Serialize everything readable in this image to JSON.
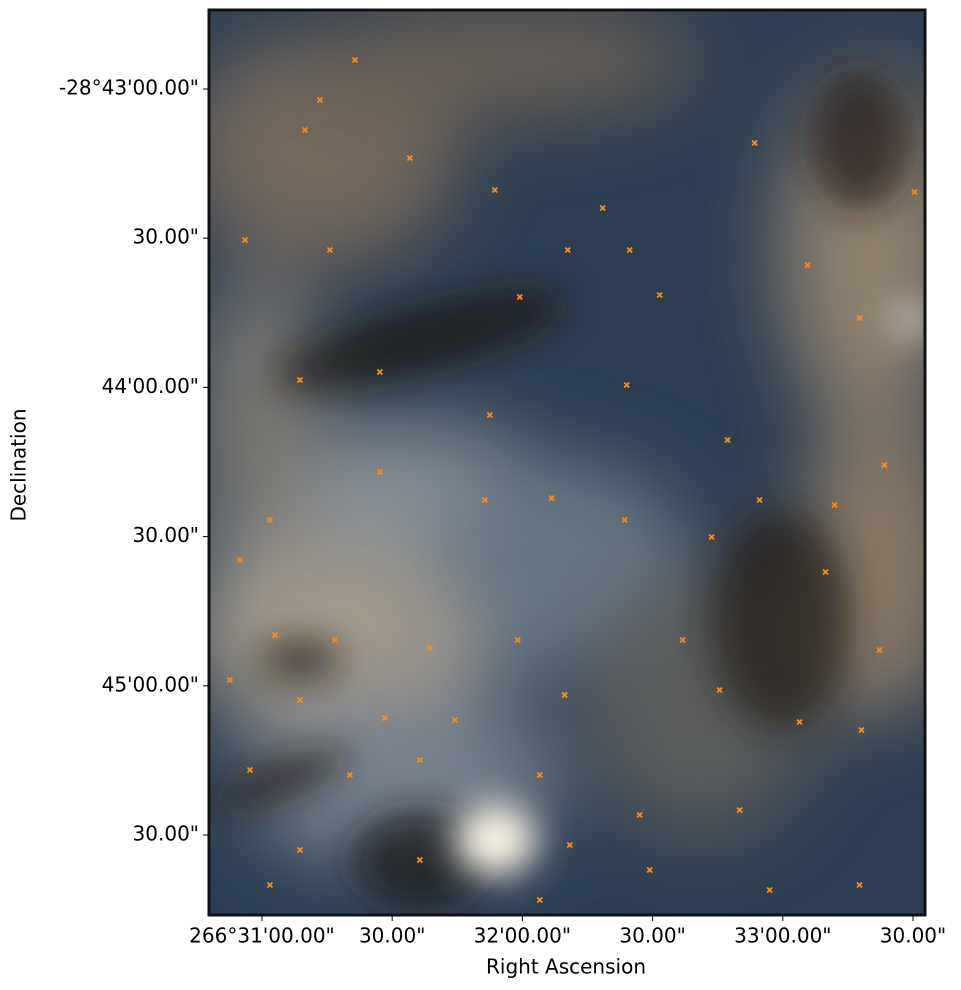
{
  "chart_data": {
    "type": "scatter",
    "x_label": "Right Ascension",
    "y_label": "Declination",
    "color": "#ff8c1a",
    "marker": "x",
    "xlim": [
      266.513277,
      266.5591
    ],
    "ylim": [
      -28.762801,
      -28.712255
    ],
    "xticks": [
      {
        "value": 266.516667,
        "label": "266°31'00.00\""
      },
      {
        "value": 266.525,
        "label": "30.00\""
      },
      {
        "value": 266.533333,
        "label": "32'00.00\""
      },
      {
        "value": 266.541667,
        "label": "30.00\""
      },
      {
        "value": 266.55,
        "label": "33'00.00\""
      },
      {
        "value": 266.558333,
        "label": "30.00\""
      }
    ],
    "yticks": [
      {
        "value": -28.716667,
        "label": "-28°43'00.00\""
      },
      {
        "value": -28.725,
        "label": "30.00\""
      },
      {
        "value": -28.733333,
        "label": "44'00.00\""
      },
      {
        "value": -28.741667,
        "label": "30.00\""
      },
      {
        "value": -28.75,
        "label": "45'00.00\""
      },
      {
        "value": -28.758333,
        "label": "30.00\""
      }
    ],
    "x": [
      266.515579,
      266.520375,
      266.519416,
      266.522614,
      266.526131,
      266.531567,
      266.538473,
      266.536235,
      266.5402,
      266.542118,
      266.548194,
      266.551583,
      266.554908,
      266.558426,
      266.533165,
      266.531247,
      266.540008,
      266.546467,
      266.524212,
      266.519096,
      266.517178,
      266.524212,
      266.530927,
      266.535212,
      266.53988,
      266.545444,
      266.552734,
      266.556187,
      266.543589,
      266.533038,
      266.52741,
      266.521335,
      266.517498,
      266.51462,
      266.519096,
      266.524532,
      266.529009,
      266.536043,
      266.545955,
      266.551071,
      266.555036,
      266.515899,
      266.522294,
      266.52677,
      266.534444,
      266.540839,
      266.547234,
      266.519096,
      266.52677,
      266.536363,
      266.541479,
      266.549153,
      266.554908,
      266.517178,
      266.534444,
      266.556507,
      266.55331,
      266.548513,
      266.521015,
      266.515259
    ],
    "y": [
      -28.725101,
      -28.717282,
      -28.718957,
      -28.715048,
      -28.720521,
      -28.722308,
      -28.723313,
      -28.725659,
      -28.725659,
      -28.728172,
      -28.719683,
      -28.726497,
      -28.729457,
      -28.72242,
      -28.728284,
      -28.734874,
      -28.733199,
      -28.736271,
      -28.732473,
      -28.73292,
      -28.740739,
      -28.738058,
      -28.739622,
      -28.73951,
      -28.740739,
      -28.741688,
      -28.743643,
      -28.747999,
      -28.747441,
      -28.747441,
      -28.747887,
      -28.747441,
      -28.747161,
      -28.749674,
      -28.750792,
      -28.751797,
      -28.751909,
      -28.750512,
      -28.750233,
      -28.75202,
      -28.752467,
      -28.754701,
      -28.75498,
      -28.754143,
      -28.75498,
      -28.757214,
      -28.756935,
      -28.759169,
      -28.759728,
      -28.75889,
      -28.760286,
      -28.761403,
      -28.761124,
      -28.761124,
      -28.761961,
      -28.737667,
      -28.739901,
      -28.739622,
      -28.725659,
      -28.742972
    ]
  }
}
